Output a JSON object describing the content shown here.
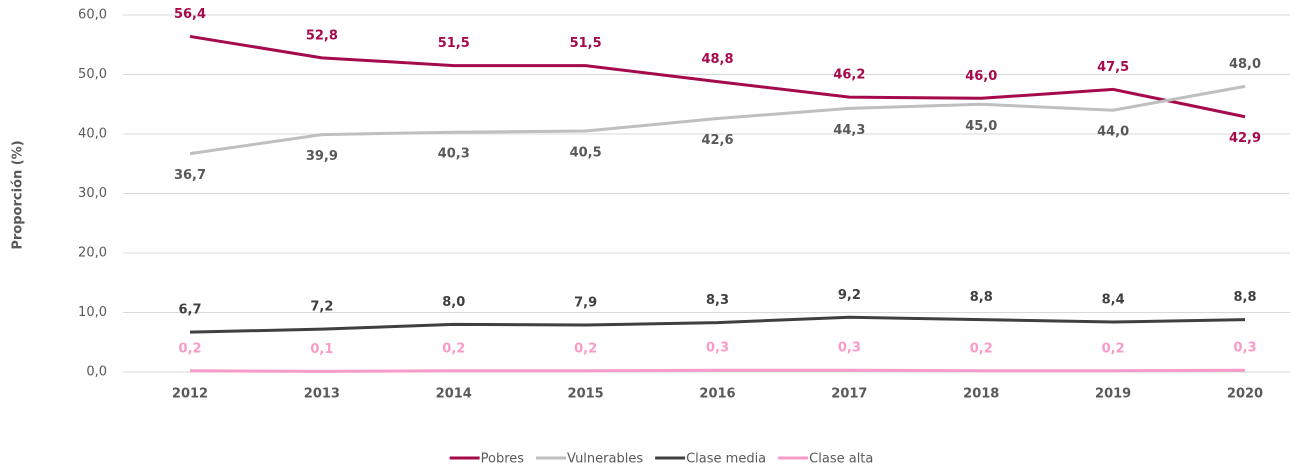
{
  "chart_data": {
    "type": "line",
    "y_label": "Proporción (%)",
    "categories": [
      "2012",
      "2013",
      "2014",
      "2015",
      "2016",
      "2017",
      "2018",
      "2019",
      "2020"
    ],
    "series": [
      {
        "name": "Pobres",
        "color": "#a50a4d",
        "label_color": "#a50a4d",
        "values": [
          56.4,
          52.8,
          51.5,
          51.5,
          48.8,
          46.2,
          46.0,
          47.5,
          42.9
        ],
        "value_labels": [
          "56,4",
          "52,8",
          "51,5",
          "51,5",
          "48,8",
          "46,2",
          "46,0",
          "47,5",
          "42,9"
        ]
      },
      {
        "name": "Vulnerables",
        "color": "#bfbfbf",
        "label_color": "#595959",
        "values": [
          36.7,
          39.9,
          40.3,
          40.5,
          42.6,
          44.3,
          45.0,
          44.0,
          48.0
        ],
        "value_labels": [
          "36,7",
          "39,9",
          "40,3",
          "40,5",
          "42,6",
          "44,3",
          "45,0",
          "44,0",
          "48,0"
        ]
      },
      {
        "name": "Clase media",
        "color": "#404040",
        "label_color": "#404040",
        "values": [
          6.7,
          7.2,
          8.0,
          7.9,
          8.3,
          9.2,
          8.8,
          8.4,
          8.8
        ],
        "value_labels": [
          "6,7",
          "7,2",
          "8,0",
          "7,9",
          "8,3",
          "9,2",
          "8,8",
          "8,4",
          "8,8"
        ]
      },
      {
        "name": "Clase alta",
        "color": "#f99bc8",
        "label_color": "#f99bc8",
        "values": [
          0.2,
          0.1,
          0.2,
          0.2,
          0.3,
          0.3,
          0.2,
          0.2,
          0.3
        ],
        "value_labels": [
          "0,2",
          "0,1",
          "0,2",
          "0,2",
          "0,3",
          "0,3",
          "0,2",
          "0,2",
          "0,3"
        ]
      }
    ],
    "ylim": [
      0,
      60
    ],
    "yticks": [
      {
        "value": 0,
        "label": "0,0"
      },
      {
        "value": 10,
        "label": "10,0"
      },
      {
        "value": 20,
        "label": "20,0"
      },
      {
        "value": 30,
        "label": "30,0"
      },
      {
        "value": 40,
        "label": "40,0"
      },
      {
        "value": 50,
        "label": "50,0"
      },
      {
        "value": 60,
        "label": "60,0"
      }
    ],
    "grid": true,
    "legend": "bottom"
  }
}
